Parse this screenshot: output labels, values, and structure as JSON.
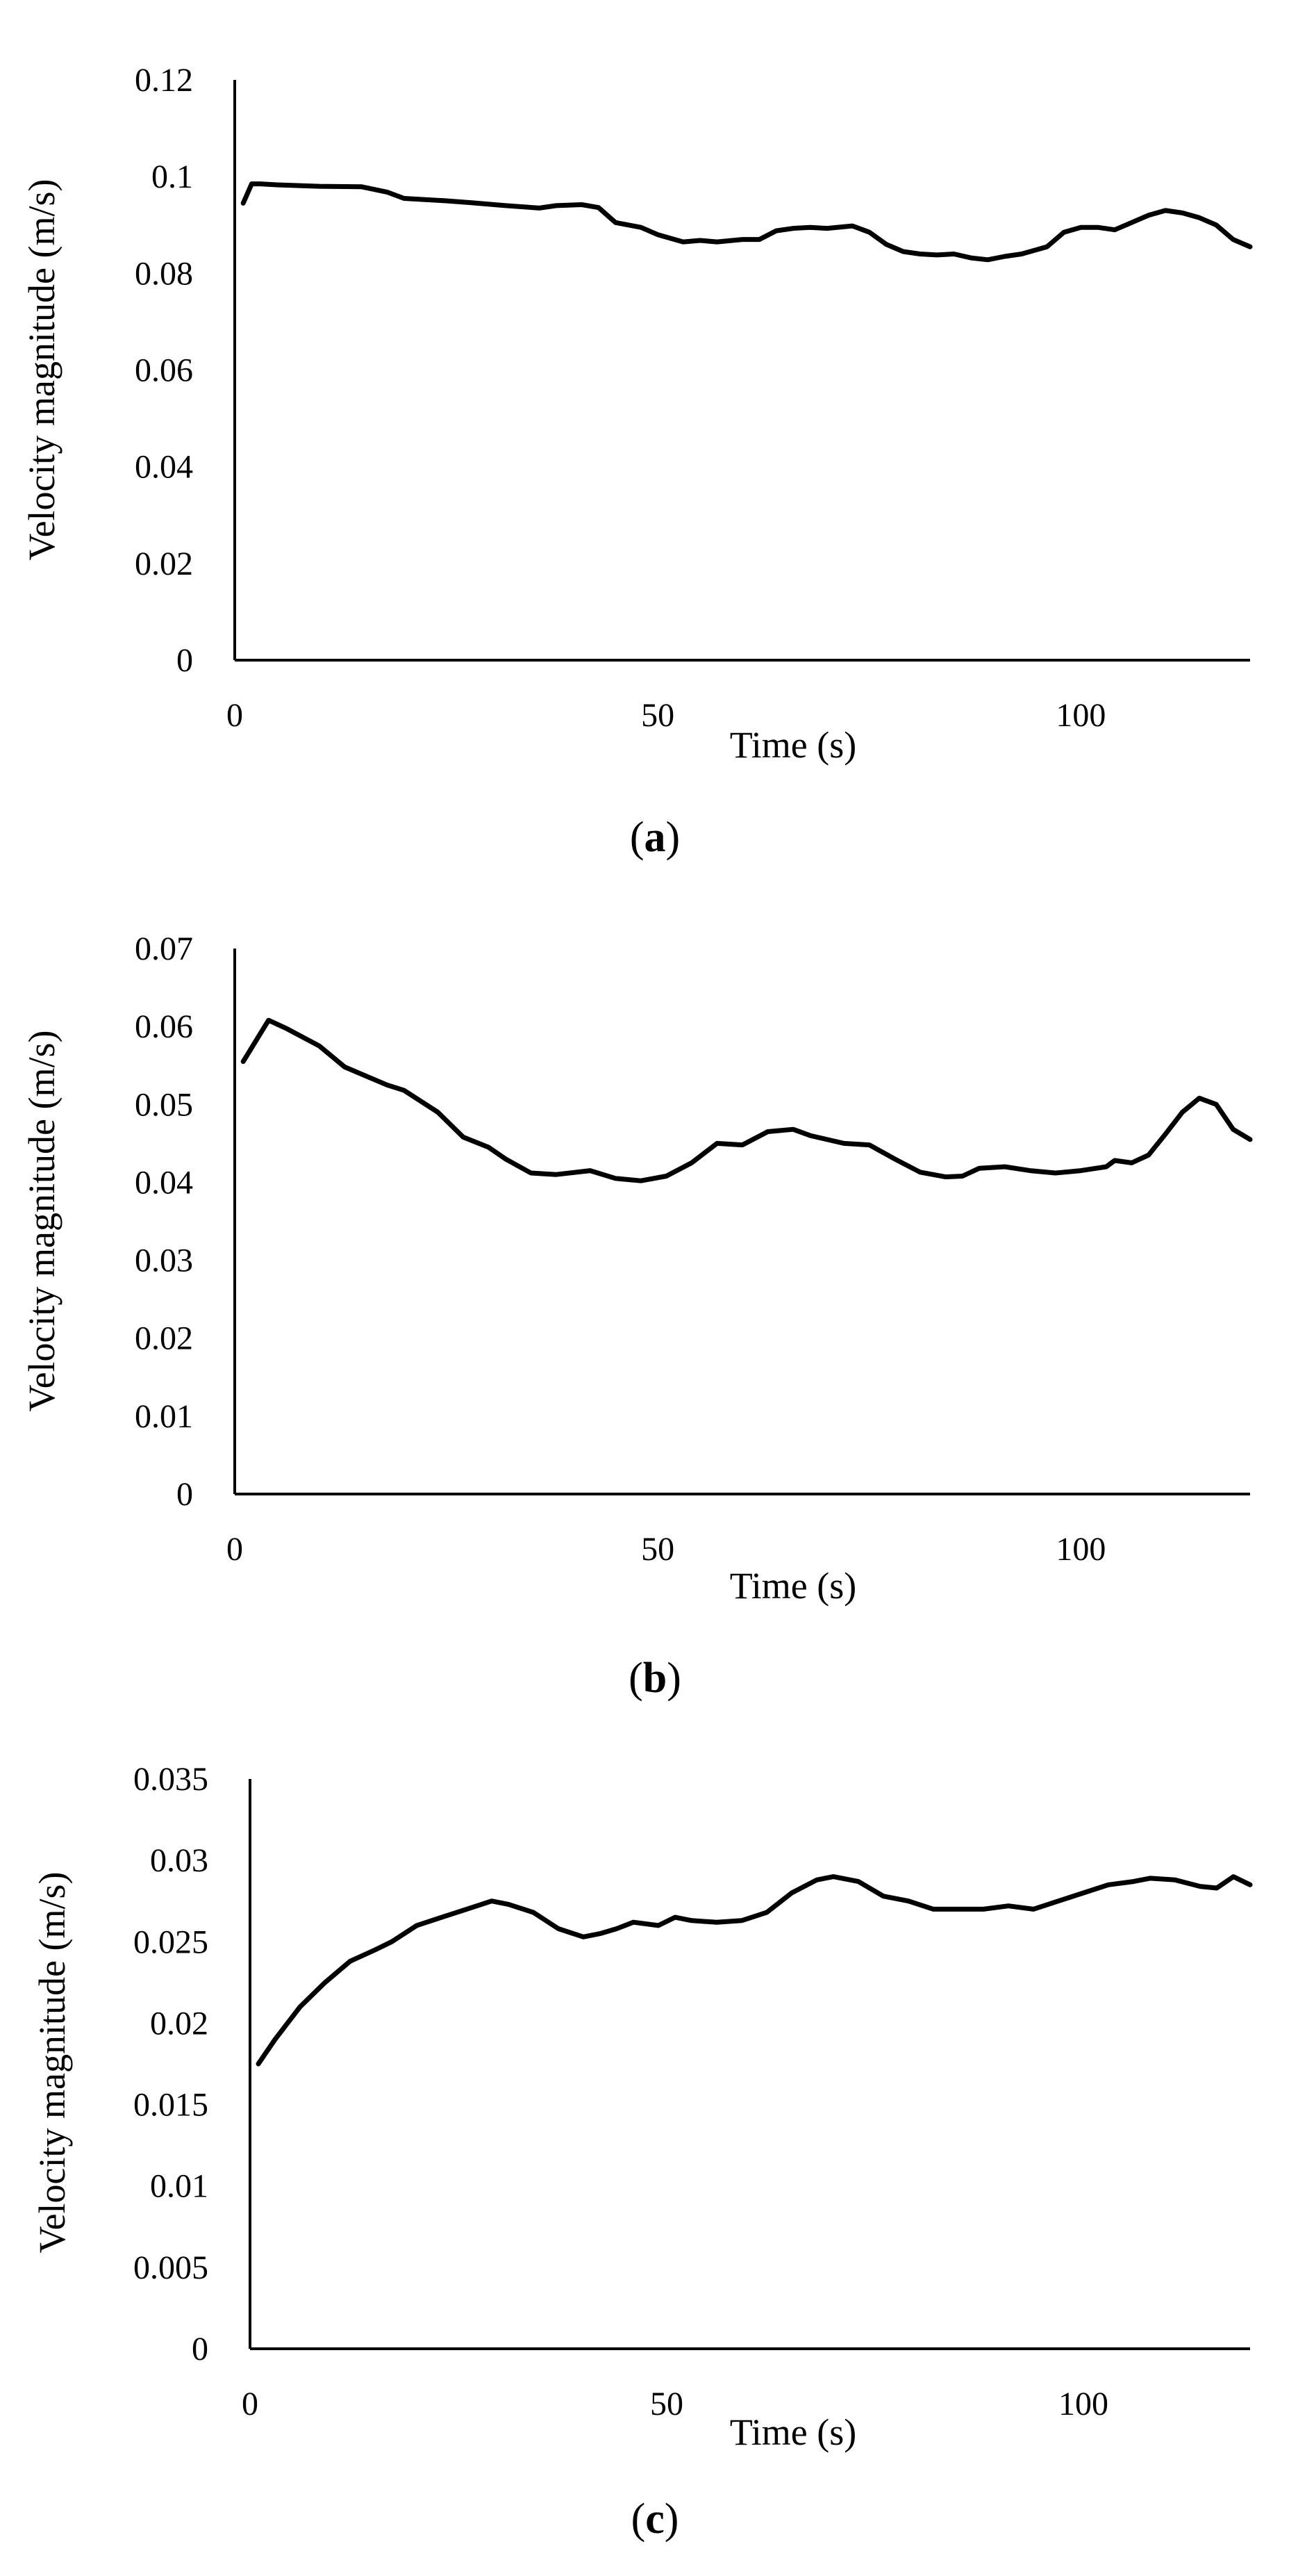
{
  "chart_data": [
    {
      "type": "line",
      "caption": "a",
      "xlabel": "Time (s)",
      "ylabel": "Velocity magnitude (m/s)",
      "xlim": [
        0,
        120
      ],
      "ylim": [
        0,
        0.12
      ],
      "xticks": [
        "0",
        "50",
        "100"
      ],
      "yticks": [
        "0",
        "0.02",
        "0.04",
        "0.06",
        "0.08",
        "0.1",
        "0.12"
      ],
      "grid": false,
      "series": [
        {
          "x": [
            1,
            2,
            3,
            5,
            10,
            15,
            18,
            20,
            25,
            28,
            32,
            36,
            38,
            41,
            43,
            45,
            48,
            50,
            53,
            55,
            57,
            60,
            62,
            64,
            66,
            68,
            70,
            73,
            75,
            77,
            79,
            81,
            83,
            85,
            87,
            89,
            91,
            93,
            96,
            98,
            100,
            102,
            104,
            106,
            108,
            110,
            112,
            114,
            116,
            118,
            120
          ],
          "y": [
            0.0945,
            0.0985,
            0.0985,
            0.0983,
            0.098,
            0.0979,
            0.0968,
            0.0955,
            0.095,
            0.0946,
            0.094,
            0.0935,
            0.094,
            0.0942,
            0.0936,
            0.0905,
            0.0895,
            0.088,
            0.0865,
            0.0868,
            0.0865,
            0.087,
            0.087,
            0.0888,
            0.0893,
            0.0895,
            0.0893,
            0.0898,
            0.0885,
            0.086,
            0.0845,
            0.084,
            0.0838,
            0.084,
            0.0832,
            0.0828,
            0.0835,
            0.084,
            0.0855,
            0.0885,
            0.0895,
            0.0895,
            0.089,
            0.0905,
            0.092,
            0.093,
            0.0925,
            0.0915,
            0.09,
            0.087,
            0.0855
          ]
        }
      ]
    },
    {
      "type": "line",
      "caption": "b",
      "xlabel": "Time (s)",
      "ylabel": "Velocity magnitude (m/s)",
      "xlim": [
        0,
        120
      ],
      "ylim": [
        0,
        0.07
      ],
      "xticks": [
        "0",
        "50",
        "100"
      ],
      "yticks": [
        "0",
        "0.01",
        "0.02",
        "0.03",
        "0.04",
        "0.05",
        "0.06",
        "0.07"
      ],
      "grid": false,
      "series": [
        {
          "x": [
            1,
            4,
            6,
            10,
            13,
            18,
            20,
            24,
            27,
            30,
            32,
            35,
            38,
            42,
            45,
            48,
            51,
            54,
            57,
            60,
            63,
            66,
            68,
            72,
            75,
            78,
            81,
            84,
            86,
            88,
            91,
            94,
            97,
            100,
            103,
            104,
            106,
            108,
            110,
            112,
            114,
            116,
            118,
            120
          ],
          "y": [
            0.0555,
            0.0608,
            0.0598,
            0.0575,
            0.0548,
            0.0525,
            0.0518,
            0.049,
            0.0458,
            0.0445,
            0.043,
            0.0412,
            0.041,
            0.0415,
            0.0405,
            0.0402,
            0.0408,
            0.0425,
            0.045,
            0.0448,
            0.0465,
            0.0468,
            0.046,
            0.045,
            0.0448,
            0.043,
            0.0413,
            0.0407,
            0.0408,
            0.0418,
            0.042,
            0.0415,
            0.0412,
            0.0415,
            0.042,
            0.0428,
            0.0425,
            0.0435,
            0.0462,
            0.049,
            0.0508,
            0.05,
            0.0468,
            0.0455
          ]
        }
      ]
    },
    {
      "type": "line",
      "caption": "c",
      "xlabel": "Time (s)",
      "ylabel": "Velocity magnitude (m/s)",
      "xlim": [
        0,
        120
      ],
      "ylim": [
        0,
        0.035
      ],
      "xticks": [
        "0",
        "50",
        "100"
      ],
      "yticks": [
        "0",
        "0.005",
        "0.01",
        "0.015",
        "0.02",
        "0.025",
        "0.03",
        "0.035"
      ],
      "grid": false,
      "series": [
        {
          "x": [
            1,
            3,
            6,
            9,
            12,
            15,
            17,
            20,
            23,
            26,
            29,
            31,
            34,
            37,
            40,
            42,
            44,
            46,
            49,
            51,
            53,
            56,
            59,
            62,
            65,
            68,
            70,
            73,
            76,
            79,
            82,
            85,
            88,
            91,
            94,
            97,
            100,
            103,
            106,
            108,
            111,
            114,
            116,
            118,
            120
          ],
          "y": [
            0.0175,
            0.019,
            0.021,
            0.0225,
            0.0238,
            0.0245,
            0.025,
            0.026,
            0.0265,
            0.027,
            0.0275,
            0.0273,
            0.0268,
            0.0258,
            0.0253,
            0.0255,
            0.0258,
            0.0262,
            0.026,
            0.0265,
            0.0263,
            0.0262,
            0.0263,
            0.0268,
            0.028,
            0.0288,
            0.029,
            0.0287,
            0.0278,
            0.0275,
            0.027,
            0.027,
            0.027,
            0.0272,
            0.027,
            0.0275,
            0.028,
            0.0285,
            0.0287,
            0.0289,
            0.0288,
            0.0284,
            0.0283,
            0.029,
            0.0285
          ]
        }
      ]
    }
  ]
}
